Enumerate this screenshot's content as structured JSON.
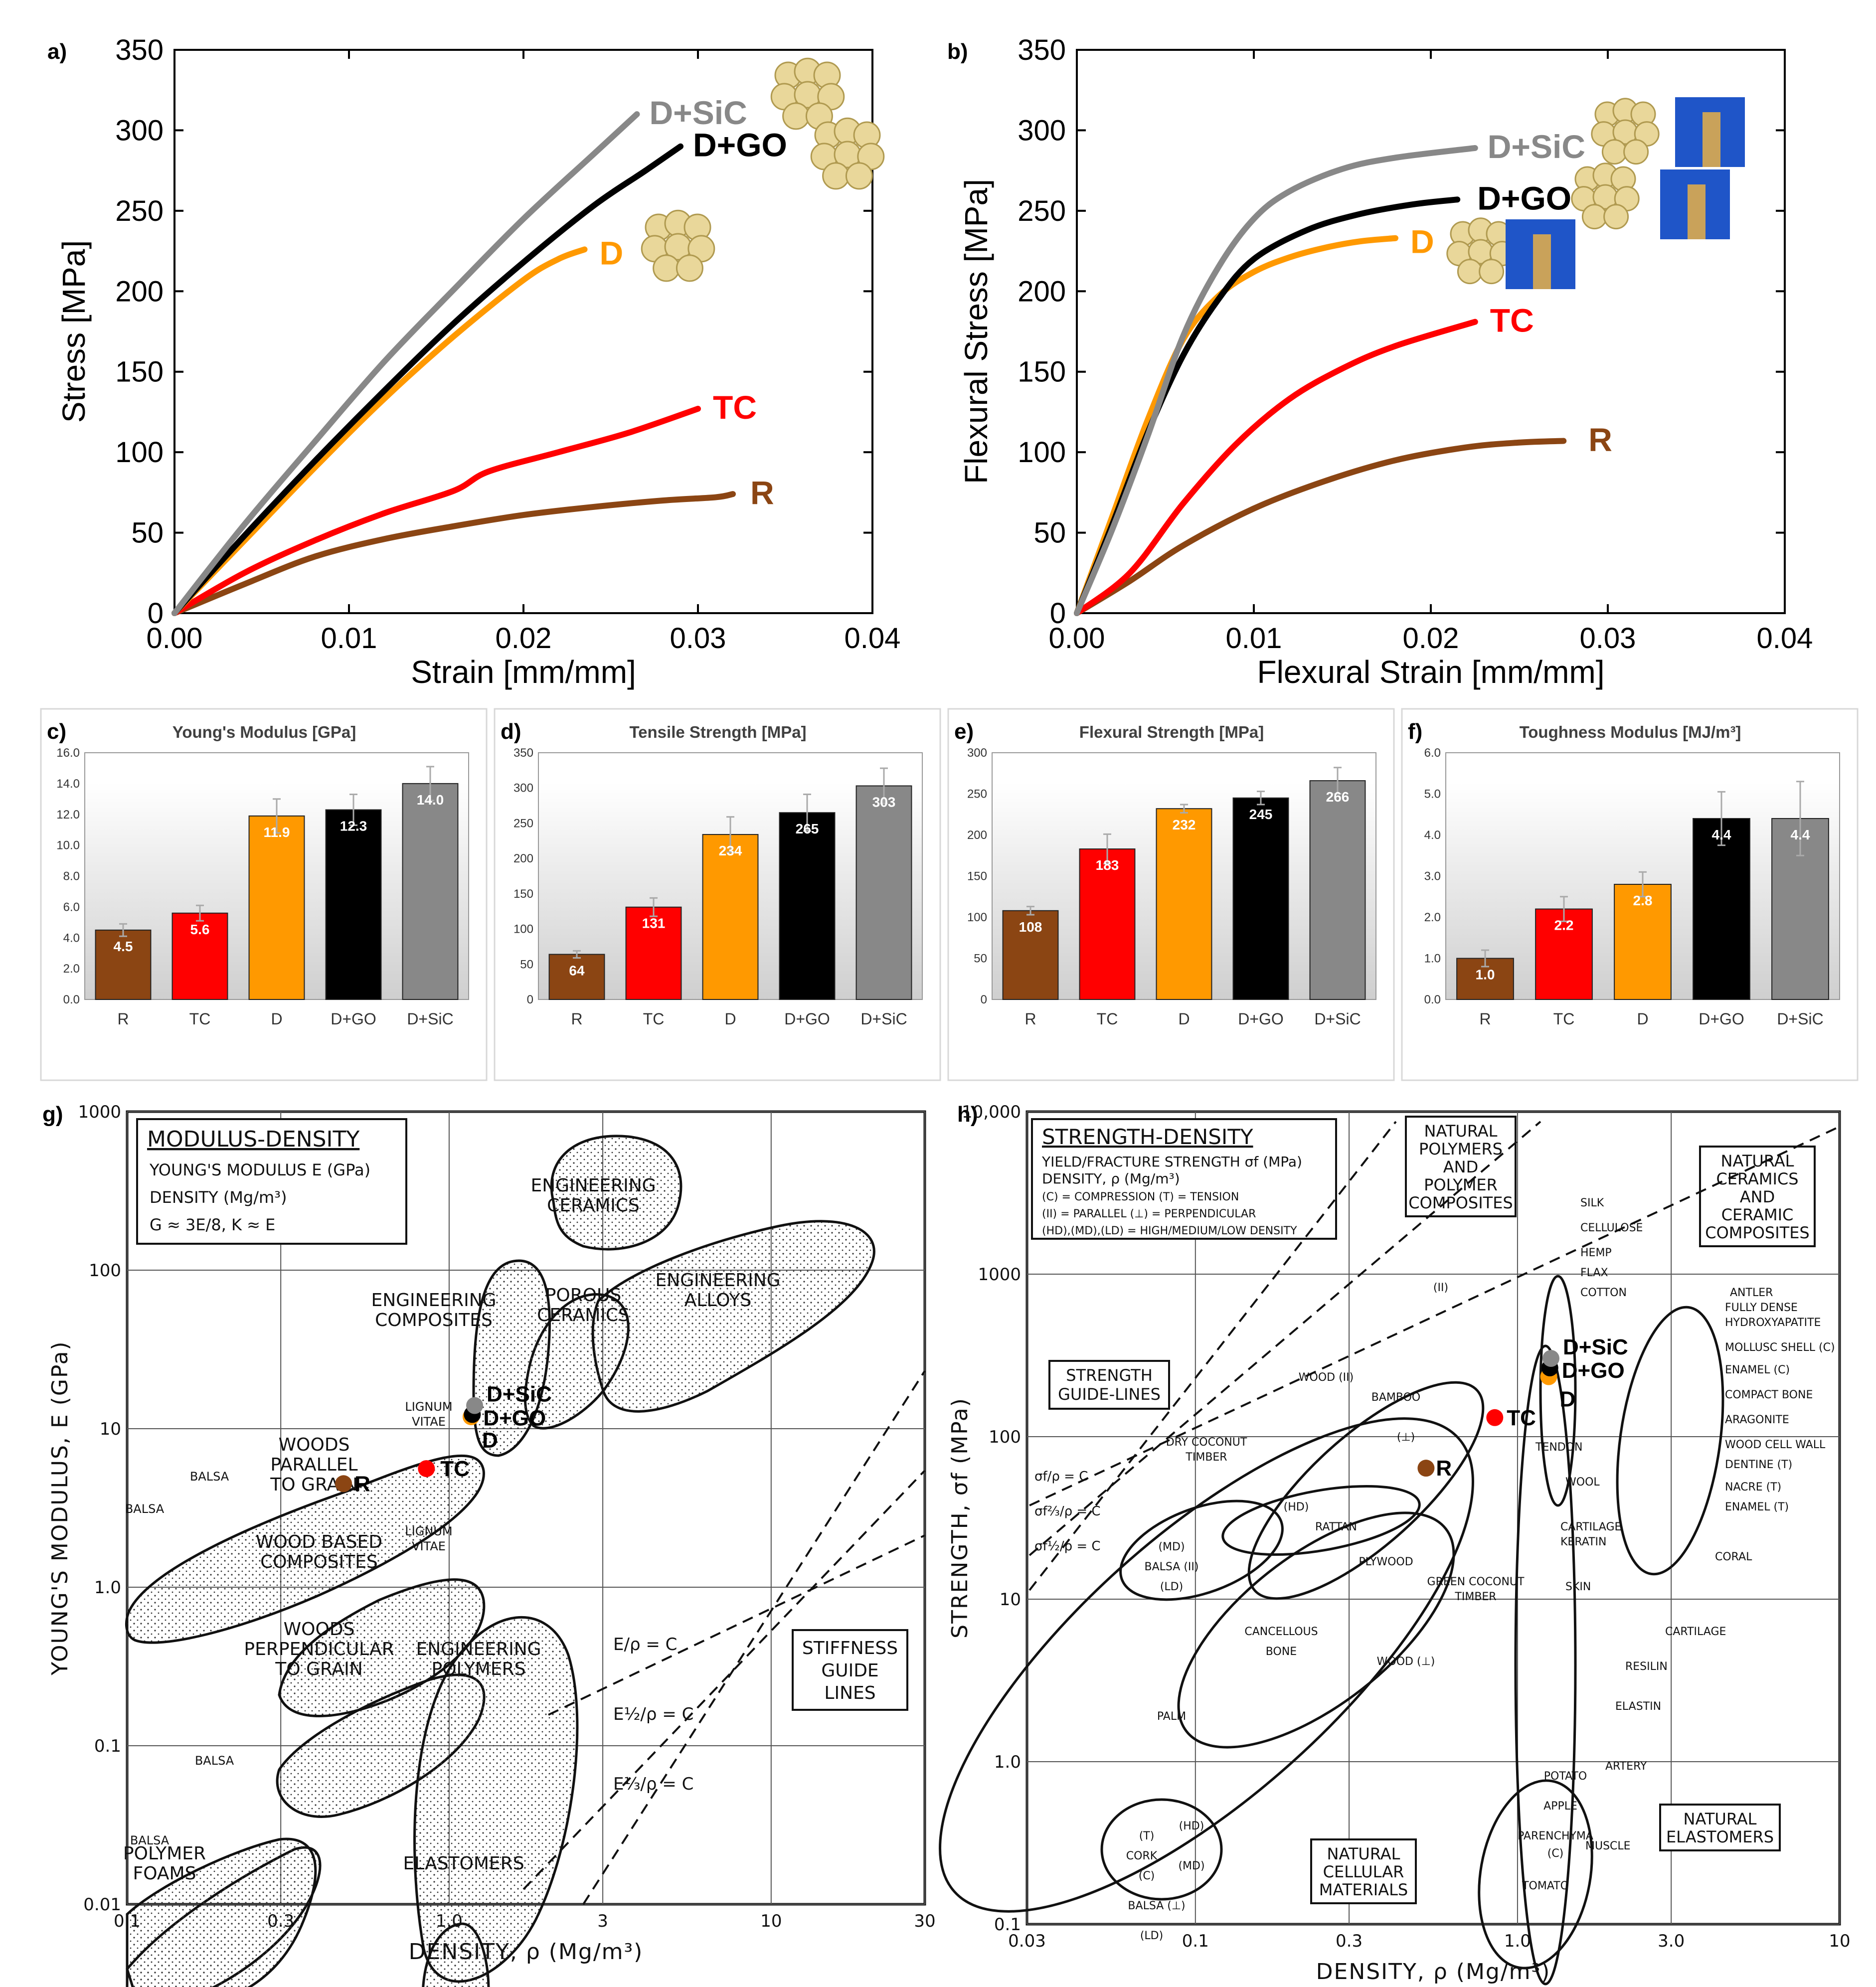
{
  "panels": {
    "a": "a)",
    "b": "b)",
    "c": "c)",
    "d": "d)",
    "e": "e)",
    "f": "f)",
    "g": "g)",
    "h": "h)"
  },
  "colors": {
    "R": "#8B4513",
    "TC": "#FF0000",
    "D": "#FF9900",
    "D+GO": "#000000",
    "D+SiC": "#888888"
  },
  "chart_data": [
    {
      "id": "a",
      "type": "line",
      "xlabel": "Strain [mm/mm]",
      "ylabel": "Stress [MPa]",
      "xlim": [
        0,
        0.04
      ],
      "ylim": [
        0,
        350
      ],
      "xticks": [
        "0.00",
        "0.01",
        "0.02",
        "0.03",
        "0.04"
      ],
      "yticks": [
        "0",
        "50",
        "100",
        "150",
        "200",
        "250",
        "300",
        "350"
      ],
      "series": [
        {
          "name": "R",
          "label": "R",
          "x": [
            0,
            0.004,
            0.008,
            0.012,
            0.016,
            0.02,
            0.024,
            0.028,
            0.031,
            0.032
          ],
          "y": [
            0,
            18,
            35,
            46,
            54,
            61,
            66,
            70,
            72,
            74
          ]
        },
        {
          "name": "TC",
          "label": "TC",
          "x": [
            0,
            0.004,
            0.008,
            0.012,
            0.016,
            0.018,
            0.022,
            0.026,
            0.03
          ],
          "y": [
            0,
            25,
            45,
            62,
            76,
            88,
            100,
            112,
            127
          ]
        },
        {
          "name": "D",
          "label": "D",
          "x": [
            0,
            0.004,
            0.008,
            0.012,
            0.016,
            0.02,
            0.022,
            0.0235
          ],
          "y": [
            0,
            45,
            90,
            133,
            172,
            207,
            220,
            226
          ]
        },
        {
          "name": "D+GO",
          "label": "D+GO",
          "x": [
            0,
            0.004,
            0.008,
            0.012,
            0.016,
            0.02,
            0.024,
            0.027,
            0.029
          ],
          "y": [
            0,
            48,
            94,
            138,
            180,
            218,
            253,
            275,
            290
          ]
        },
        {
          "name": "D+SiC",
          "label": "D+SiC",
          "x": [
            0,
            0.004,
            0.008,
            0.012,
            0.016,
            0.02,
            0.024,
            0.0265
          ],
          "y": [
            0,
            55,
            106,
            156,
            201,
            245,
            285,
            310
          ]
        }
      ]
    },
    {
      "id": "b",
      "type": "line",
      "xlabel": "Flexural Strain [mm/mm]",
      "ylabel": "Flexural Stress [MPa]",
      "xlim": [
        0,
        0.04
      ],
      "ylim": [
        0,
        350
      ],
      "xticks": [
        "0.00",
        "0.01",
        "0.02",
        "0.03",
        "0.04"
      ],
      "yticks": [
        "0",
        "50",
        "100",
        "150",
        "200",
        "250",
        "300",
        "350"
      ],
      "series": [
        {
          "name": "R",
          "label": "R",
          "x": [
            0,
            0.003,
            0.006,
            0.01,
            0.014,
            0.018,
            0.022,
            0.025,
            0.0275
          ],
          "y": [
            0,
            20,
            42,
            65,
            82,
            95,
            103,
            106,
            107
          ]
        },
        {
          "name": "TC",
          "label": "TC",
          "x": [
            0,
            0.003,
            0.006,
            0.009,
            0.012,
            0.015,
            0.018,
            0.0225
          ],
          "y": [
            0,
            25,
            68,
            105,
            133,
            152,
            166,
            181
          ]
        },
        {
          "name": "D",
          "label": "D",
          "x": [
            0,
            0.002,
            0.004,
            0.006,
            0.008,
            0.01,
            0.012,
            0.014,
            0.016,
            0.018
          ],
          "y": [
            0,
            60,
            120,
            170,
            197,
            212,
            221,
            227,
            231,
            233
          ]
        },
        {
          "name": "D+GO",
          "label": "D+GO",
          "x": [
            0,
            0.002,
            0.004,
            0.006,
            0.008,
            0.01,
            0.013,
            0.016,
            0.019,
            0.0215
          ],
          "y": [
            0,
            55,
            112,
            160,
            195,
            220,
            238,
            248,
            254,
            257
          ]
        },
        {
          "name": "D+SiC",
          "label": "D+SiC",
          "x": [
            0,
            0.002,
            0.004,
            0.006,
            0.008,
            0.01,
            0.012,
            0.015,
            0.018,
            0.0225
          ],
          "y": [
            0,
            52,
            110,
            172,
            215,
            245,
            262,
            276,
            283,
            289
          ]
        }
      ]
    },
    {
      "id": "c",
      "type": "bar",
      "title": "Young's Modulus [GPa]",
      "categories": [
        "R",
        "TC",
        "D",
        "D+GO",
        "D+SiC"
      ],
      "values": [
        4.5,
        5.6,
        11.9,
        12.3,
        14.0
      ],
      "labels": [
        "4.5",
        "5.6",
        "11.9",
        "12.3",
        "14.0"
      ],
      "errors": [
        0.4,
        0.5,
        1.1,
        1.0,
        1.1
      ],
      "ylim": [
        0,
        16
      ],
      "yticks": [
        "0.0",
        "2.0",
        "4.0",
        "6.0",
        "8.0",
        "10.0",
        "12.0",
        "14.0",
        "16.0"
      ]
    },
    {
      "id": "d",
      "type": "bar",
      "title": "Tensile Strength [MPa]",
      "categories": [
        "R",
        "TC",
        "D",
        "D+GO",
        "D+SiC"
      ],
      "values": [
        64,
        131,
        234,
        265,
        303
      ],
      "labels": [
        "64",
        "131",
        "234",
        "265",
        "303"
      ],
      "errors": [
        5,
        13,
        25,
        26,
        25
      ],
      "ylim": [
        0,
        350
      ],
      "yticks": [
        "0",
        "50",
        "100",
        "150",
        "200",
        "250",
        "300",
        "350"
      ]
    },
    {
      "id": "e",
      "type": "bar",
      "title": "Flexural Strength [MPa]",
      "categories": [
        "R",
        "TC",
        "D",
        "D+GO",
        "D+SiC"
      ],
      "values": [
        108,
        183,
        232,
        245,
        266
      ],
      "labels": [
        "108",
        "183",
        "232",
        "245",
        "266"
      ],
      "errors": [
        5,
        18,
        5,
        8,
        16
      ],
      "ylim": [
        0,
        300
      ],
      "yticks": [
        "0",
        "50",
        "100",
        "150",
        "200",
        "250",
        "300"
      ]
    },
    {
      "id": "f",
      "type": "bar",
      "title": "Toughness Modulus [MJ/m³]",
      "categories": [
        "R",
        "TC",
        "D",
        "D+GO",
        "D+SiC"
      ],
      "values": [
        1.0,
        2.2,
        2.8,
        4.4,
        4.4
      ],
      "labels": [
        "1.0",
        "2.2",
        "2.8",
        "4.4",
        "4.4"
      ],
      "errors": [
        0.2,
        0.3,
        0.3,
        0.65,
        0.9
      ],
      "ylim": [
        0,
        6
      ],
      "yticks": [
        "0.0",
        "1.0",
        "2.0",
        "3.0",
        "4.0",
        "5.0",
        "6.0"
      ]
    },
    {
      "id": "g",
      "type": "scatter",
      "scale": "log-log",
      "xlabel": "DENSITY, ρ (Mg/m³)",
      "ylabel": "YOUNG'S MODULUS, E (GPa)",
      "xlim": [
        0.1,
        30
      ],
      "ylim": [
        0.01,
        1000
      ],
      "xticks": [
        {
          "v": 0.1,
          "t": "0.1"
        },
        {
          "v": 0.3,
          "t": "0.3"
        },
        {
          "v": 1,
          "t": "1.0"
        },
        {
          "v": 3,
          "t": "3"
        },
        {
          "v": 10,
          "t": "10"
        },
        {
          "v": 30,
          "t": "30"
        }
      ],
      "yticks": [
        {
          "v": 0.01,
          "t": "0.01"
        },
        {
          "v": 0.1,
          "t": "0.1"
        },
        {
          "v": 1,
          "t": "1.0"
        },
        {
          "v": 10,
          "t": "10"
        },
        {
          "v": 100,
          "t": "100"
        },
        {
          "v": 1000,
          "t": "1000"
        }
      ],
      "points": [
        {
          "name": "R",
          "label": "R",
          "x": 0.47,
          "y": 4.5
        },
        {
          "name": "TC",
          "label": "TC",
          "x": 0.85,
          "y": 5.6
        },
        {
          "name": "D",
          "label": "D",
          "x": 1.17,
          "y": 11.9
        },
        {
          "name": "D+GO",
          "label": "D+GO",
          "x": 1.18,
          "y": 12.3
        },
        {
          "name": "D+SiC",
          "label": "D+SiC",
          "x": 1.2,
          "y": 14.0
        }
      ]
    },
    {
      "id": "h",
      "type": "scatter",
      "scale": "log-log",
      "xlabel": "DENSITY, ρ (Mg/m³)",
      "ylabel": "STRENGTH, σf  (MPa)",
      "xlim": [
        0.03,
        10
      ],
      "ylim": [
        0.1,
        10000
      ],
      "xticks": [
        {
          "v": 0.03,
          "t": "0.03"
        },
        {
          "v": 0.1,
          "t": "0.1"
        },
        {
          "v": 0.3,
          "t": "0.3"
        },
        {
          "v": 1,
          "t": "1.0"
        },
        {
          "v": 3,
          "t": "3.0"
        },
        {
          "v": 10,
          "t": "10"
        }
      ],
      "yticks": [
        {
          "v": 0.1,
          "t": "0.1"
        },
        {
          "v": 1,
          "t": "1.0"
        },
        {
          "v": 10,
          "t": "10"
        },
        {
          "v": 100,
          "t": "100"
        },
        {
          "v": 1000,
          "t": "1000"
        },
        {
          "v": 10000,
          "t": "10,000"
        }
      ],
      "points": [
        {
          "name": "R",
          "label": "R",
          "x": 0.52,
          "y": 64
        },
        {
          "name": "TC",
          "label": "TC",
          "x": 0.85,
          "y": 131
        },
        {
          "name": "D",
          "label": "D",
          "x": 1.25,
          "y": 234
        },
        {
          "name": "D+GO",
          "label": "D+GO",
          "x": 1.26,
          "y": 265
        },
        {
          "name": "D+SiC",
          "label": "D+SiC",
          "x": 1.27,
          "y": 303
        }
      ]
    }
  ],
  "map_g": {
    "title": "MODULUS-DENSITY",
    "legend": [
      "YOUNG'S MODULUS E (GPa)",
      "DENSITY (Mg/m³)",
      "G ≈ 3E/8,  K ≈ E"
    ],
    "regions": [
      "ENGINEERING",
      "CERAMICS",
      "ENGINEERING",
      "ALLOYS",
      "POROUS",
      "CERAMICS",
      "ENGINEERING",
      "COMPOSITES",
      "WOODS",
      "PARALLEL",
      "TO GRAIN",
      "LIGNUM",
      "VITAE",
      "BALSA",
      "BALSA",
      "WOOD BASED",
      "COMPOSITES",
      "LIGNUM",
      "VITAE",
      "WOODS",
      "PERPENDICULAR",
      "TO GRAIN",
      "ENGINEERING",
      "POLYMERS",
      "BALSA",
      "BALSA",
      "POLYMER",
      "FOAMS",
      "ELASTOMERS"
    ],
    "guide_eqs": [
      "E/ρ = C",
      "E½/ρ = C",
      "E⅓/ρ = C"
    ],
    "guide_box": [
      "STIFFNESS",
      "GUIDE",
      "LINES"
    ]
  },
  "map_h": {
    "title": "STRENGTH-DENSITY",
    "legend": [
      "YIELD/FRACTURE STRENGTH σf (MPa)",
      "DENSITY, ρ (Mg/m³)",
      "(C) = COMPRESSION   (T) = TENSION",
      "(II) = PARALLEL      (⊥) = PERPENDICULAR",
      "(HD),(MD),(LD) = HIGH/MEDIUM/LOW DENSITY"
    ],
    "box_polymers": [
      "NATURAL",
      "POLYMERS",
      "AND",
      "POLYMER",
      "COMPOSITES"
    ],
    "box_ceramics": [
      "NATURAL",
      "CERAMICS",
      "AND",
      "CERAMIC",
      "COMPOSITES"
    ],
    "box_guides": [
      "STRENGTH",
      "GUIDE-LINES"
    ],
    "box_cellular": [
      "NATURAL",
      "CELLULAR",
      "MATERIALS"
    ],
    "box_elastomers": [
      "NATURAL",
      "ELASTOMERS"
    ],
    "guide_eqs": [
      "σf/ρ = C",
      "σf⅔/ρ = C",
      "σf½/ρ = C"
    ],
    "right_labels": [
      "SILK",
      "CELLULOSE",
      "HEMP",
      "FLAX",
      "COTTON",
      "ANTLER",
      "FULLY DENSE",
      "HYDROXYAPATITE",
      "MOLLUSC SHELL (C)",
      "ENAMEL (C)",
      "COMPACT BONE",
      "ARAGONITE",
      "WOOD CELL WALL",
      "DENTINE (T)",
      "NACRE (T)",
      "ENAMEL (T)",
      "CORAL",
      "TENDON",
      "WOOL",
      "CARTILAGE",
      "KERATIN",
      "SKIN",
      "CARTILAGE",
      "RESILIN",
      "ELASTIN",
      "ARTERY",
      "MUSCLE"
    ],
    "inner_labels": [
      "WOOD (II)",
      "BAMBOO",
      "(II)",
      "(⊥)",
      "DRY COCONUT",
      "TIMBER",
      "(HD)",
      "RATTAN",
      "(MD)",
      "BALSA (II)",
      "(LD)",
      "PLYWOOD",
      "GREEN COCONUT",
      "TIMBER",
      "CANCELLOUS",
      "BONE",
      "WOOD (⊥)",
      "PALM",
      "(T)",
      "CORK",
      "(C)",
      "(HD)",
      "(MD)",
      "BALSA (⊥)",
      "(LD)",
      "POTATO",
      "APPLE",
      "PARENCHYMA",
      "(C)",
      "TOMATO"
    ]
  }
}
